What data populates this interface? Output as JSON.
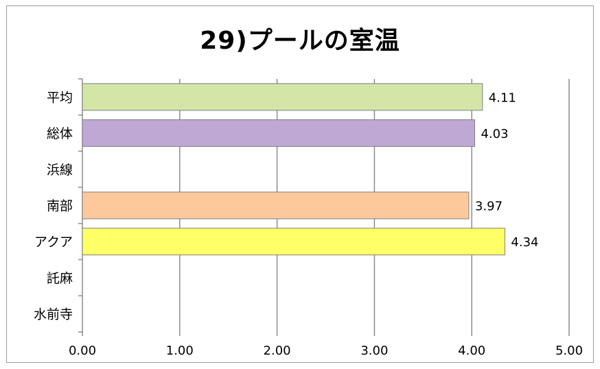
{
  "chart_data": {
    "type": "bar",
    "orientation": "horizontal",
    "title": "29)プールの室温",
    "categories": [
      "平均",
      "総体",
      "浜線",
      "南部",
      "アクア",
      "託麻",
      "水前寺"
    ],
    "values": [
      4.11,
      4.03,
      null,
      3.97,
      4.34,
      null,
      null
    ],
    "value_labels": [
      "4.11",
      "4.03",
      "",
      "3.97",
      "4.34",
      "",
      ""
    ],
    "bar_colors": [
      "#d3e6a8",
      "#bfa8d4",
      "#ffffff",
      "#fdc99b",
      "#ffff66",
      "#ffffff",
      "#ffffff"
    ],
    "bar_border": "#7f7f7f",
    "xlim": [
      0,
      5
    ],
    "x_ticks": [
      "0.00",
      "1.00",
      "2.00",
      "3.00",
      "4.00",
      "5.00"
    ],
    "grid": true,
    "legend": "none"
  }
}
